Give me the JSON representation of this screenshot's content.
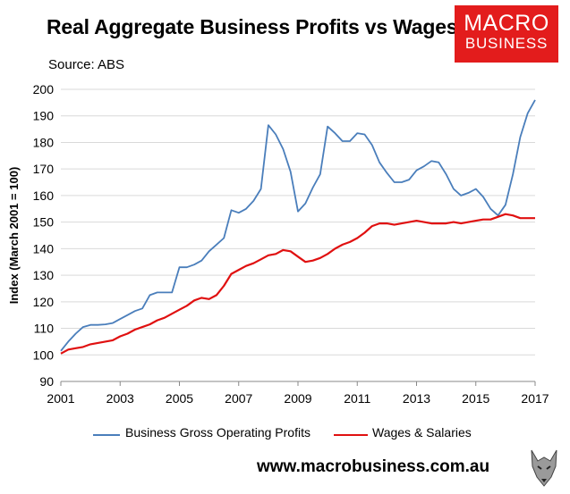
{
  "title": "Real Aggregate Business Profits vs Wages",
  "source": "Source: ABS",
  "logo": {
    "top": "MACRO",
    "bottom": "BUSINESS",
    "color": "#e31c1c"
  },
  "url": "www.macrobusiness.com.au",
  "wolf_icon": "wolf-icon",
  "chart_data": {
    "type": "line",
    "title": "Real Aggregate Business Profits vs Wages",
    "xlabel": "",
    "ylabel": "Index (March 2001 = 100)",
    "xlim": [
      2001,
      2017
    ],
    "ylim": [
      90,
      200
    ],
    "xticks": [
      "2001",
      "2003",
      "2005",
      "2007",
      "2009",
      "2011",
      "2013",
      "2015",
      "2017"
    ],
    "yticks": [
      "90",
      "100",
      "110",
      "120",
      "130",
      "140",
      "150",
      "160",
      "170",
      "180",
      "190",
      "200"
    ],
    "grid": "horizontal",
    "legend": "bottom",
    "series": [
      {
        "name": "Business Gross Operating Profits",
        "color": "#4a7ebb",
        "x": [
          2001.0,
          2001.25,
          2001.5,
          2001.75,
          2002.0,
          2002.25,
          2002.5,
          2002.75,
          2003.0,
          2003.25,
          2003.5,
          2003.75,
          2004.0,
          2004.25,
          2004.5,
          2004.75,
          2005.0,
          2005.25,
          2005.5,
          2005.75,
          2006.0,
          2006.25,
          2006.5,
          2006.75,
          2007.0,
          2007.25,
          2007.5,
          2007.75,
          2008.0,
          2008.25,
          2008.5,
          2008.75,
          2009.0,
          2009.25,
          2009.5,
          2009.75,
          2010.0,
          2010.25,
          2010.5,
          2010.75,
          2011.0,
          2011.25,
          2011.5,
          2011.75,
          2012.0,
          2012.25,
          2012.5,
          2012.75,
          2013.0,
          2013.25,
          2013.5,
          2013.75,
          2014.0,
          2014.25,
          2014.5,
          2014.75,
          2015.0,
          2015.25,
          2015.5,
          2015.75,
          2016.0,
          2016.25,
          2016.5,
          2016.75,
          2017.0
        ],
        "values": [
          101.5,
          105,
          108,
          110.5,
          111.3,
          111.3,
          111.5,
          112,
          113.5,
          115,
          116.5,
          117.5,
          122.5,
          123.5,
          123.5,
          123.5,
          133,
          133,
          134,
          135.5,
          139,
          141.5,
          144,
          154.5,
          153.5,
          155,
          158,
          162.5,
          186.5,
          183,
          177.5,
          169,
          154,
          157,
          163,
          168,
          186,
          183.5,
          180.5,
          180.5,
          183.5,
          183,
          179,
          172.5,
          168.5,
          165,
          165,
          166,
          169.5,
          171,
          173,
          172.5,
          168,
          162.5,
          160,
          161,
          162.5,
          159.5,
          155,
          152.5,
          156.5,
          168,
          182,
          191,
          196
        ]
      },
      {
        "name": "Wages & Salaries",
        "color": "#e01010",
        "x": [
          2001.0,
          2001.25,
          2001.5,
          2001.75,
          2002.0,
          2002.25,
          2002.5,
          2002.75,
          2003.0,
          2003.25,
          2003.5,
          2003.75,
          2004.0,
          2004.25,
          2004.5,
          2004.75,
          2005.0,
          2005.25,
          2005.5,
          2005.75,
          2006.0,
          2006.25,
          2006.5,
          2006.75,
          2007.0,
          2007.25,
          2007.5,
          2007.75,
          2008.0,
          2008.25,
          2008.5,
          2008.75,
          2009.0,
          2009.25,
          2009.5,
          2009.75,
          2010.0,
          2010.25,
          2010.5,
          2010.75,
          2011.0,
          2011.25,
          2011.5,
          2011.75,
          2012.0,
          2012.25,
          2012.5,
          2012.75,
          2013.0,
          2013.25,
          2013.5,
          2013.75,
          2014.0,
          2014.25,
          2014.5,
          2014.75,
          2015.0,
          2015.25,
          2015.5,
          2015.75,
          2016.0,
          2016.25,
          2016.5,
          2016.75,
          2017.0
        ],
        "values": [
          100.5,
          102,
          102.5,
          103,
          104,
          104.5,
          105,
          105.5,
          107,
          108,
          109.5,
          110.5,
          111.5,
          113,
          114,
          115.5,
          117,
          118.5,
          120.5,
          121.5,
          121,
          122.5,
          126,
          130.5,
          132,
          133.5,
          134.5,
          136,
          137.5,
          138,
          139.5,
          139,
          137,
          135,
          135.5,
          136.5,
          138,
          140,
          141.5,
          142.5,
          144,
          146,
          148.5,
          149.5,
          149.5,
          149,
          149.5,
          150,
          150.5,
          150,
          149.5,
          149.5,
          149.5,
          150,
          149.5,
          150,
          150.5,
          151,
          151,
          152,
          153,
          152.5,
          151.5,
          151.5,
          151.5
        ]
      }
    ]
  }
}
